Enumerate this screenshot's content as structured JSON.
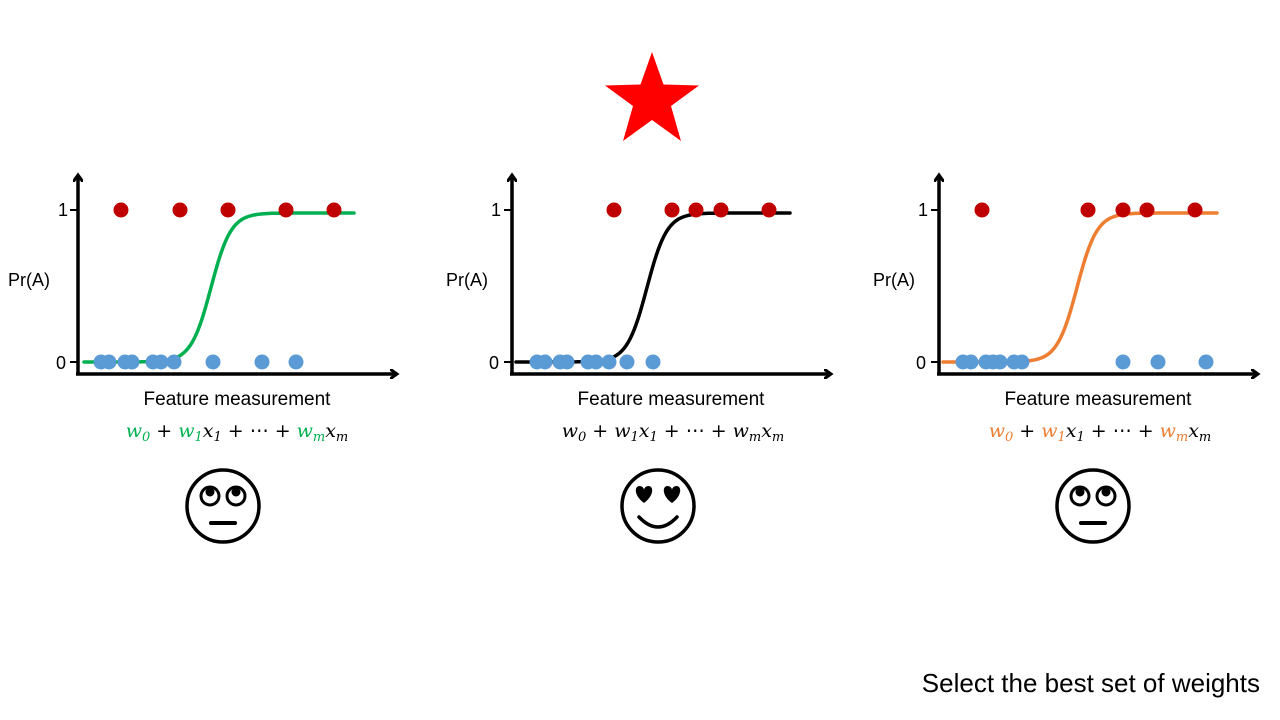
{
  "caption": "Select the best set of weights",
  "star_icon": "star-icon",
  "point_colors": {
    "positive": "#C00000",
    "negative": "#5B9BD5"
  },
  "panels": [
    {
      "id": "left",
      "curve_color": "#00B050",
      "ylabel": "Pr(A)",
      "y_tick_1": "1",
      "y_tick_0": "0",
      "xlabel": "Feature measurement",
      "formula": {
        "w0": "w",
        "w0_sub": "0",
        "plus1": "+",
        "w1": "w",
        "w1_sub": "1",
        "x1": "x",
        "x1_sub": "1",
        "plus2": "+",
        "dots": "⋯",
        "plus3": "+",
        "wm": "w",
        "wm_sub": "m",
        "xm": "x",
        "xm_sub": "m"
      },
      "weight_color": "#00B050",
      "face": "rolling-eyes-face"
    },
    {
      "id": "middle",
      "curve_color": "#000000",
      "ylabel": "Pr(A)",
      "y_tick_1": "1",
      "y_tick_0": "0",
      "xlabel": "Feature measurement",
      "formula": {
        "w0": "w",
        "w0_sub": "0",
        "plus1": "+",
        "w1": "w",
        "w1_sub": "1",
        "x1": "x",
        "x1_sub": "1",
        "plus2": "+",
        "dots": "⋯",
        "plus3": "+",
        "wm": "w",
        "wm_sub": "m",
        "xm": "x",
        "xm_sub": "m"
      },
      "weight_color": "#000000",
      "face": "heart-eyes-face"
    },
    {
      "id": "right",
      "curve_color": "#ED7D31",
      "ylabel": "Pr(A)",
      "y_tick_1": "1",
      "y_tick_0": "0",
      "xlabel": "Feature measurement",
      "formula": {
        "w0": "w",
        "w0_sub": "0",
        "plus1": "+",
        "w1": "w",
        "w1_sub": "1",
        "x1": "x",
        "x1_sub": "1",
        "plus2": "+",
        "dots": "⋯",
        "plus3": "+",
        "wm": "w",
        "wm_sub": "m",
        "xm": "x",
        "xm_sub": "m"
      },
      "weight_color": "#ED7D31",
      "face": "rolling-eyes-face"
    }
  ]
}
